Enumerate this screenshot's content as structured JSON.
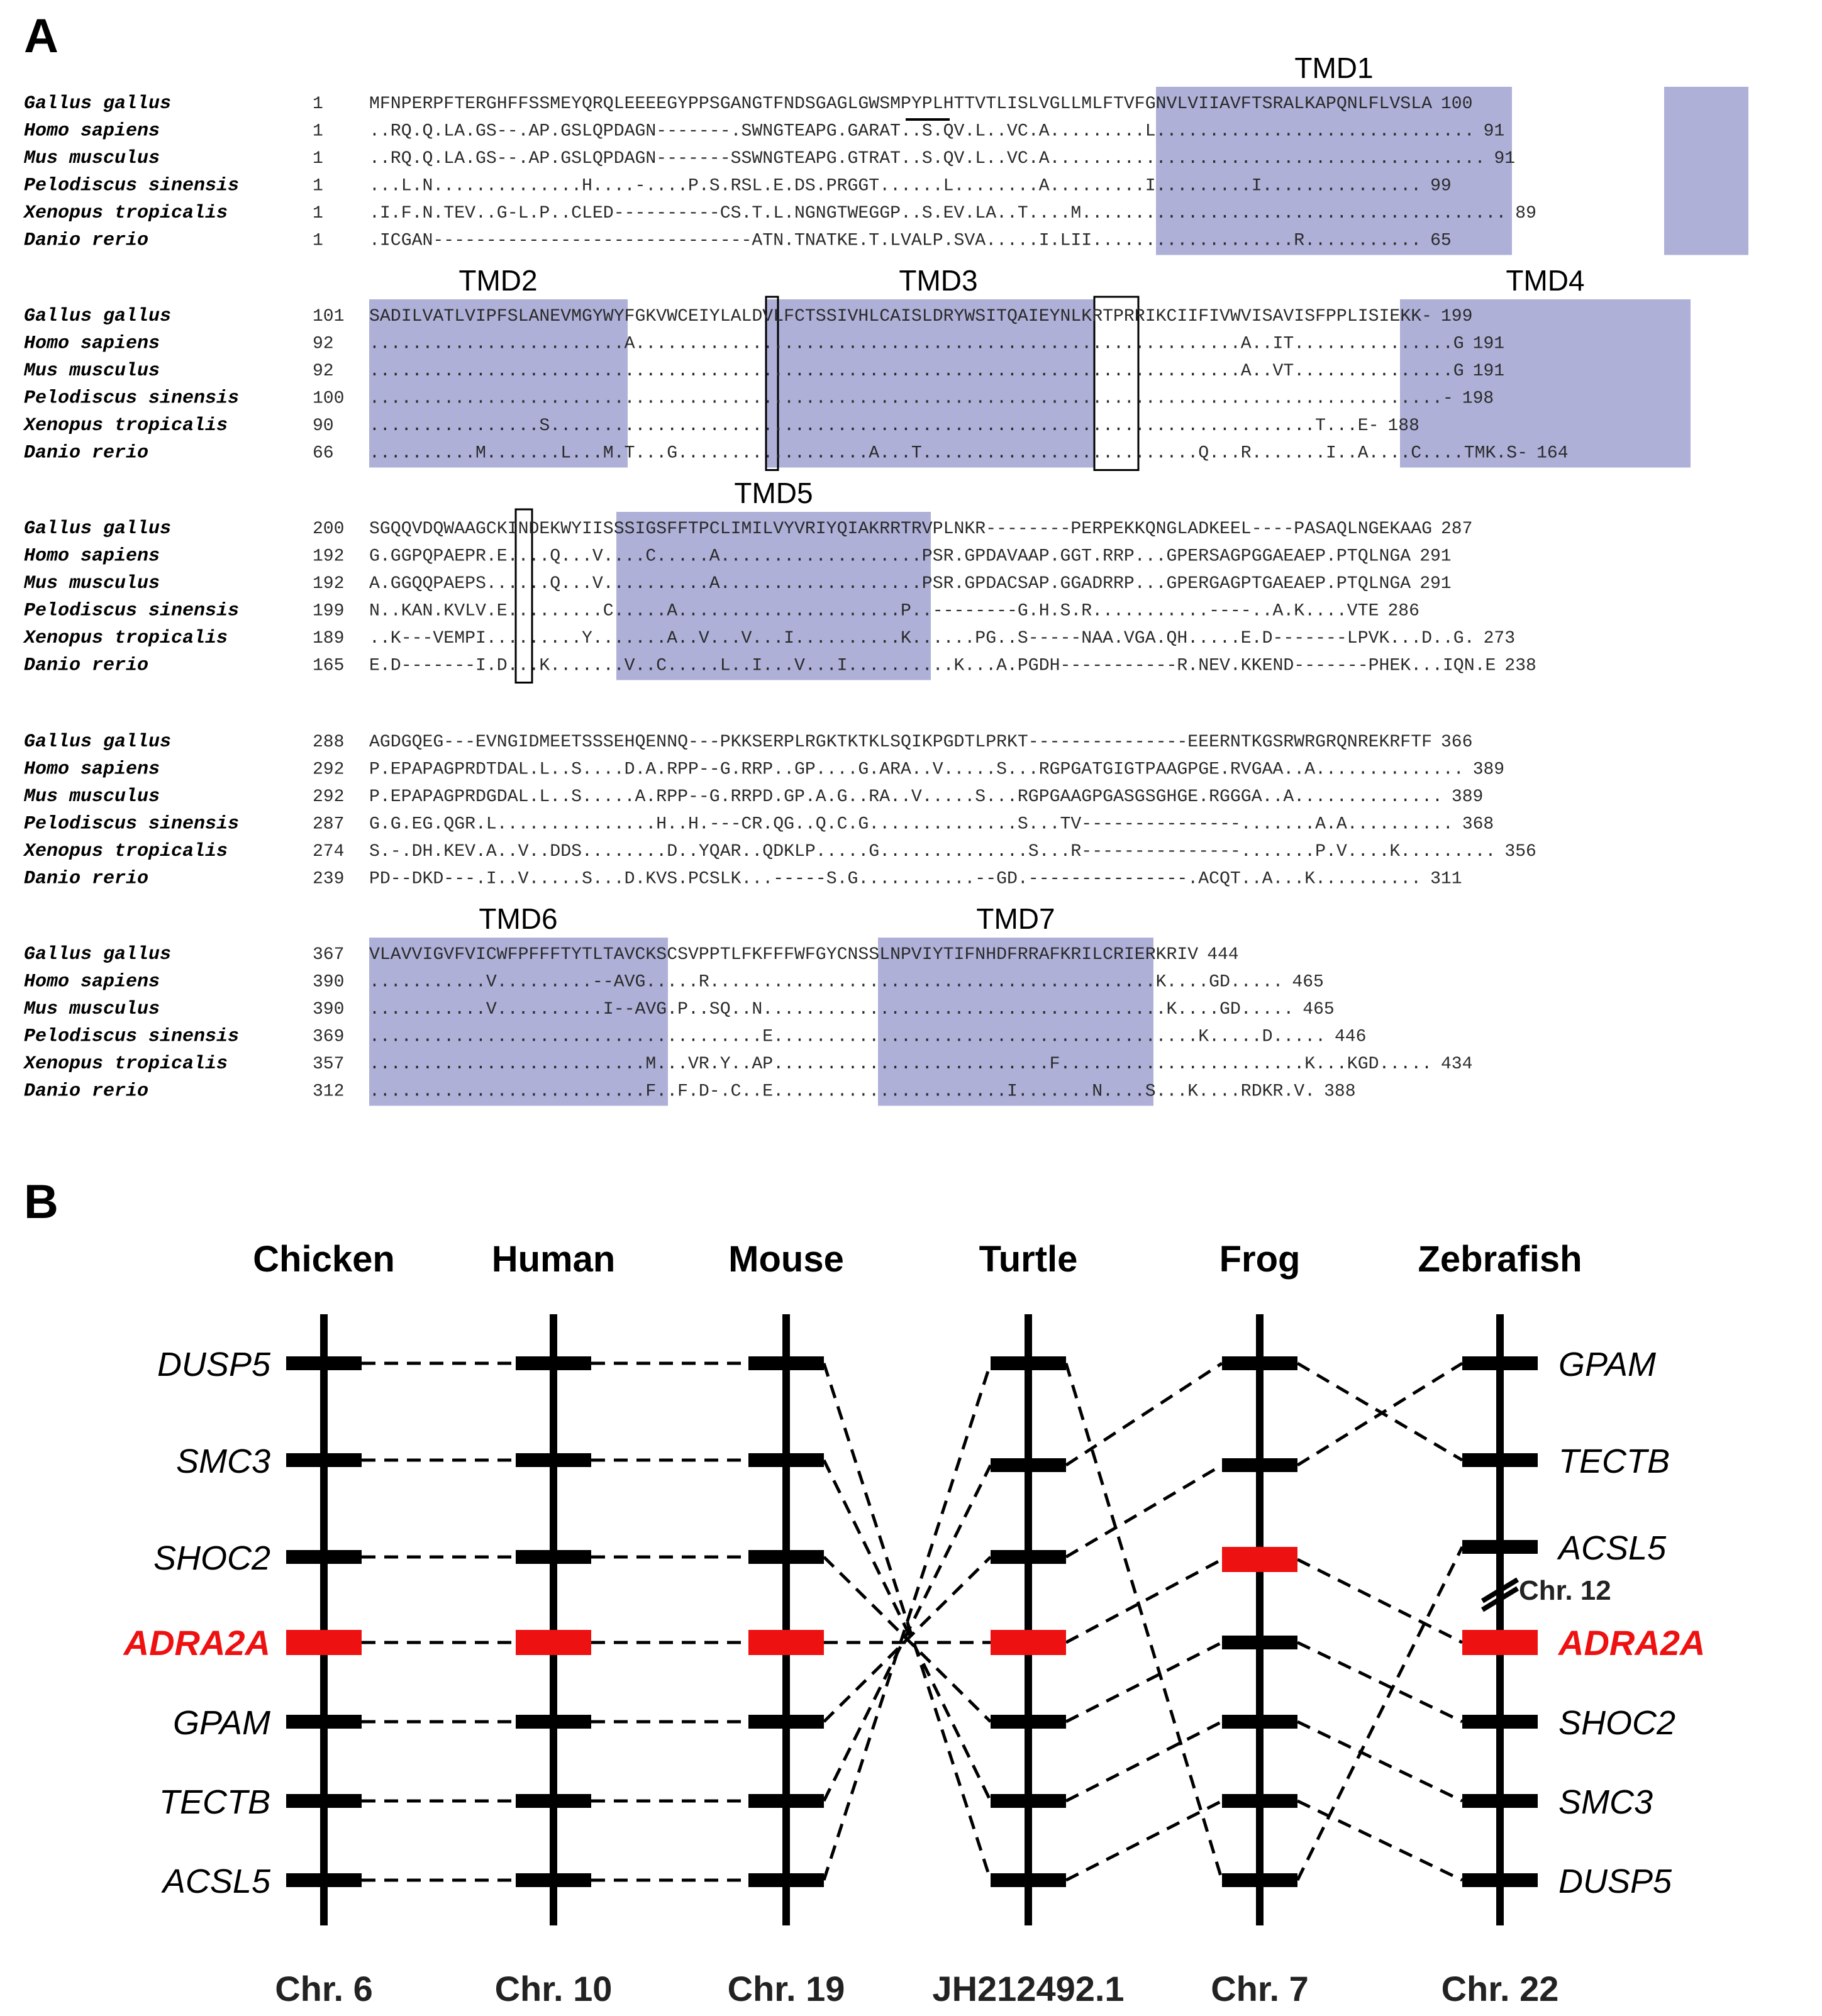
{
  "panel_a": {
    "label": "A",
    "species": [
      "Gallus gallus",
      "Homo sapiens",
      "Mus musculus",
      "Pelodiscus sinensis",
      "Xenopus tropicalis",
      "Danio rerio"
    ],
    "blocks": [
      {
        "starts": [
          "1",
          "1",
          "1",
          "1",
          "1",
          "1"
        ],
        "seqs": [
          "MFNPERPFTERGHFFSSMEYQRQLEEEEGYPPSGANGTFNDSGAGLGWSMPYPLHTTVTLISLVGLLMLFTVFGNVLVIIAVFTSRALKAPQNLFLVSLA",
          "..RQ.Q.LA.GS--.AP.GSLQPDAGN-------.SWNGTEAPG.GARAT..S.QV.L..VC.A.........L..............................",
          "..RQ.Q.LA.GS--.AP.GSLQPDAGN-------SSWNGTEAPG.GTRAT..S.QV.L..VC.A.........................................",
          "...L.N..............H....-....P.S.RSL.E.DS.PRGGT......L........A.........I.........I...............",
          ".I.F.N.TEV..G-L.P..CLED----------CS.T.L.NGNGTWEGGP..S.EV.LA..T....M........................................",
          ".ICGAN------------------------------ATN.TNATKE.T.LVALP.SVA.....I.LII...................R..........."
        ],
        "ends": [
          "100",
          "91",
          "91",
          "99",
          "89",
          "65"
        ],
        "tmd": [
          "TMD1"
        ]
      },
      {
        "starts": [
          "101",
          "92",
          "92",
          "100",
          "90",
          "66"
        ],
        "seqs": [
          "SADILVATLVIPFSLANEVMGYWYFGKVWCEIYLALDVLFCTSSIVHLCAISLDRYWSITQAIEYNLKRTPRRIKCIIFIVWVISAVISFPPLISIEKK-",
          "........................A.........................................................A..IT...............G",
          "..................................................................................A..VT...............G",
          ".....................................................................................................-",
          "................S........................................................................T...E-",
          "..........M.......L...M.T...G..................A...T..........................Q...R.......I..A....C....TMK.S-"
        ],
        "ends": [
          "199",
          "191",
          "191",
          "198",
          "188",
          "164"
        ],
        "tmd": [
          "TMD2",
          "TMD3",
          "TMD4"
        ]
      },
      {
        "starts": [
          "200",
          "192",
          "192",
          "199",
          "189",
          "165"
        ],
        "seqs": [
          "SGQQVDQWAAGCKINDEKWYIISSSIGSFFTPCLIMILVYVRIYQIAKRRTRVPLNKR--------PERPEKKQNGLADKEEL----PASAQLNGEKAAG",
          "G.GGPQPAEPR.E....Q...V....C.....A...................PSR.GPDAVAAP.GGT.RRP...GPERSAGPGGAEAEP.PTQLNGA",
          "A.GGQQPAEPS......Q...V..........A...................PSR.GPDACSAP.GGADRRP...GPERGAGPTGAEAEP.PTQLNGA",
          "N..KAN.KVLV.E.........C.....A.....................P..--------G.H.S.R...........----..A.K....VTE",
          "..K---VEMPI.........Y.......A..V...V...I..........K......PG..S-----NAA.VGA.QH.....E.D-------LPVK...D..G.",
          "E.D-------I.D...K.......V..C.....L..I...V...I..........K...A.PGDH-----------R.NEV.KKEND-------PHEK...IQN.E"
        ],
        "ends": [
          "287",
          "291",
          "291",
          "286",
          "273",
          "238"
        ],
        "tmd": [
          "TMD5"
        ]
      },
      {
        "starts": [
          "288",
          "292",
          "292",
          "287",
          "274",
          "239"
        ],
        "seqs": [
          "AGDGQEG---EVNGIDMEETSSSEHQENNQ---PKKSERPLRGKTKTKLSQIKPGDTLPRKT---------------EEERNTKGSRWRGRQNREKRFTF",
          "P.EPAPAGPRDTDAL.L..S....D.A.RPP--G.RRP..GP....G.ARA..V.....S...RGPGATGIGTPAAGPGE.RVGAA..A..............",
          "P.EPAPAGPRDGDAL.L..S.....A.RPP--G.RRPD.GP.A.G..RA..V.....S...RGPGAAGPGASGSGHGE.RGGGA..A..............",
          "G.G.EG.QGR.L...............H..H.---CR.QG..Q.C.G..............S...TV---------------.......A.A..........",
          "S.-.DH.KEV.A..V..DDS........D..YQAR..QDKLP.....G..............S...R---------------.......P.V....K.........",
          "PD--DKD---.I..V.....S...D.KVS.PCSLK...-----S.G...........--GD.---------------.ACQT..A...K.........."
        ],
        "ends": [
          "366",
          "389",
          "389",
          "368",
          "356",
          "311"
        ],
        "tmd": []
      },
      {
        "starts": [
          "367",
          "390",
          "390",
          "369",
          "357",
          "312"
        ],
        "seqs": [
          "VLAVVIGVFVICWFPFFFTYTLTAVCKSCSVPPTLFKFFFWFGYCNSSLNPVIYTIFNHDFRRAFKRILCRIERKRIV",
          "...........V.........--AVG.....R..........................................K....GD.....",
          "...........V..........I--AVG.P..SQ..N......................................K....GD.....",
          ".....................................E........................................K.....D.....",
          "..........................M...VR.Y..AP..........................F.......................K...KGD.....",
          "..........................F..F.D-.C..E......................I.......N....S...K....RDKR.V."
        ],
        "ends": [
          "444",
          "465",
          "465",
          "446",
          "434",
          "388"
        ],
        "tmd": [
          "TMD6",
          "TMD7"
        ]
      }
    ]
  },
  "panel_b": {
    "label": "B",
    "columns": [
      {
        "title": "Chicken",
        "chr": "Chr. 6"
      },
      {
        "title": "Human",
        "chr": "Chr. 10"
      },
      {
        "title": "Mouse",
        "chr": "Chr. 19"
      },
      {
        "title": "Turtle",
        "chr": "JH212492.1"
      },
      {
        "title": "Frog",
        "chr": "Chr. 7"
      },
      {
        "title": "Zebrafish",
        "chr": "Chr. 22"
      }
    ],
    "left_genes": [
      "DUSP5",
      "SMC3",
      "SHOC2",
      "ADRA2A",
      "GPAM",
      "TECTB",
      "ACSL5"
    ],
    "right_genes": [
      "GPAM",
      "TECTB",
      "ACSL5",
      "ADRA2A",
      "SHOC2",
      "SMC3",
      "DUSP5"
    ],
    "highlight_gene": "ADRA2A",
    "break_label": "Chr. 12",
    "colors": {
      "highlight": "#ee1111",
      "tmd_shade": "#aeb0d8",
      "line": "#000000"
    }
  }
}
